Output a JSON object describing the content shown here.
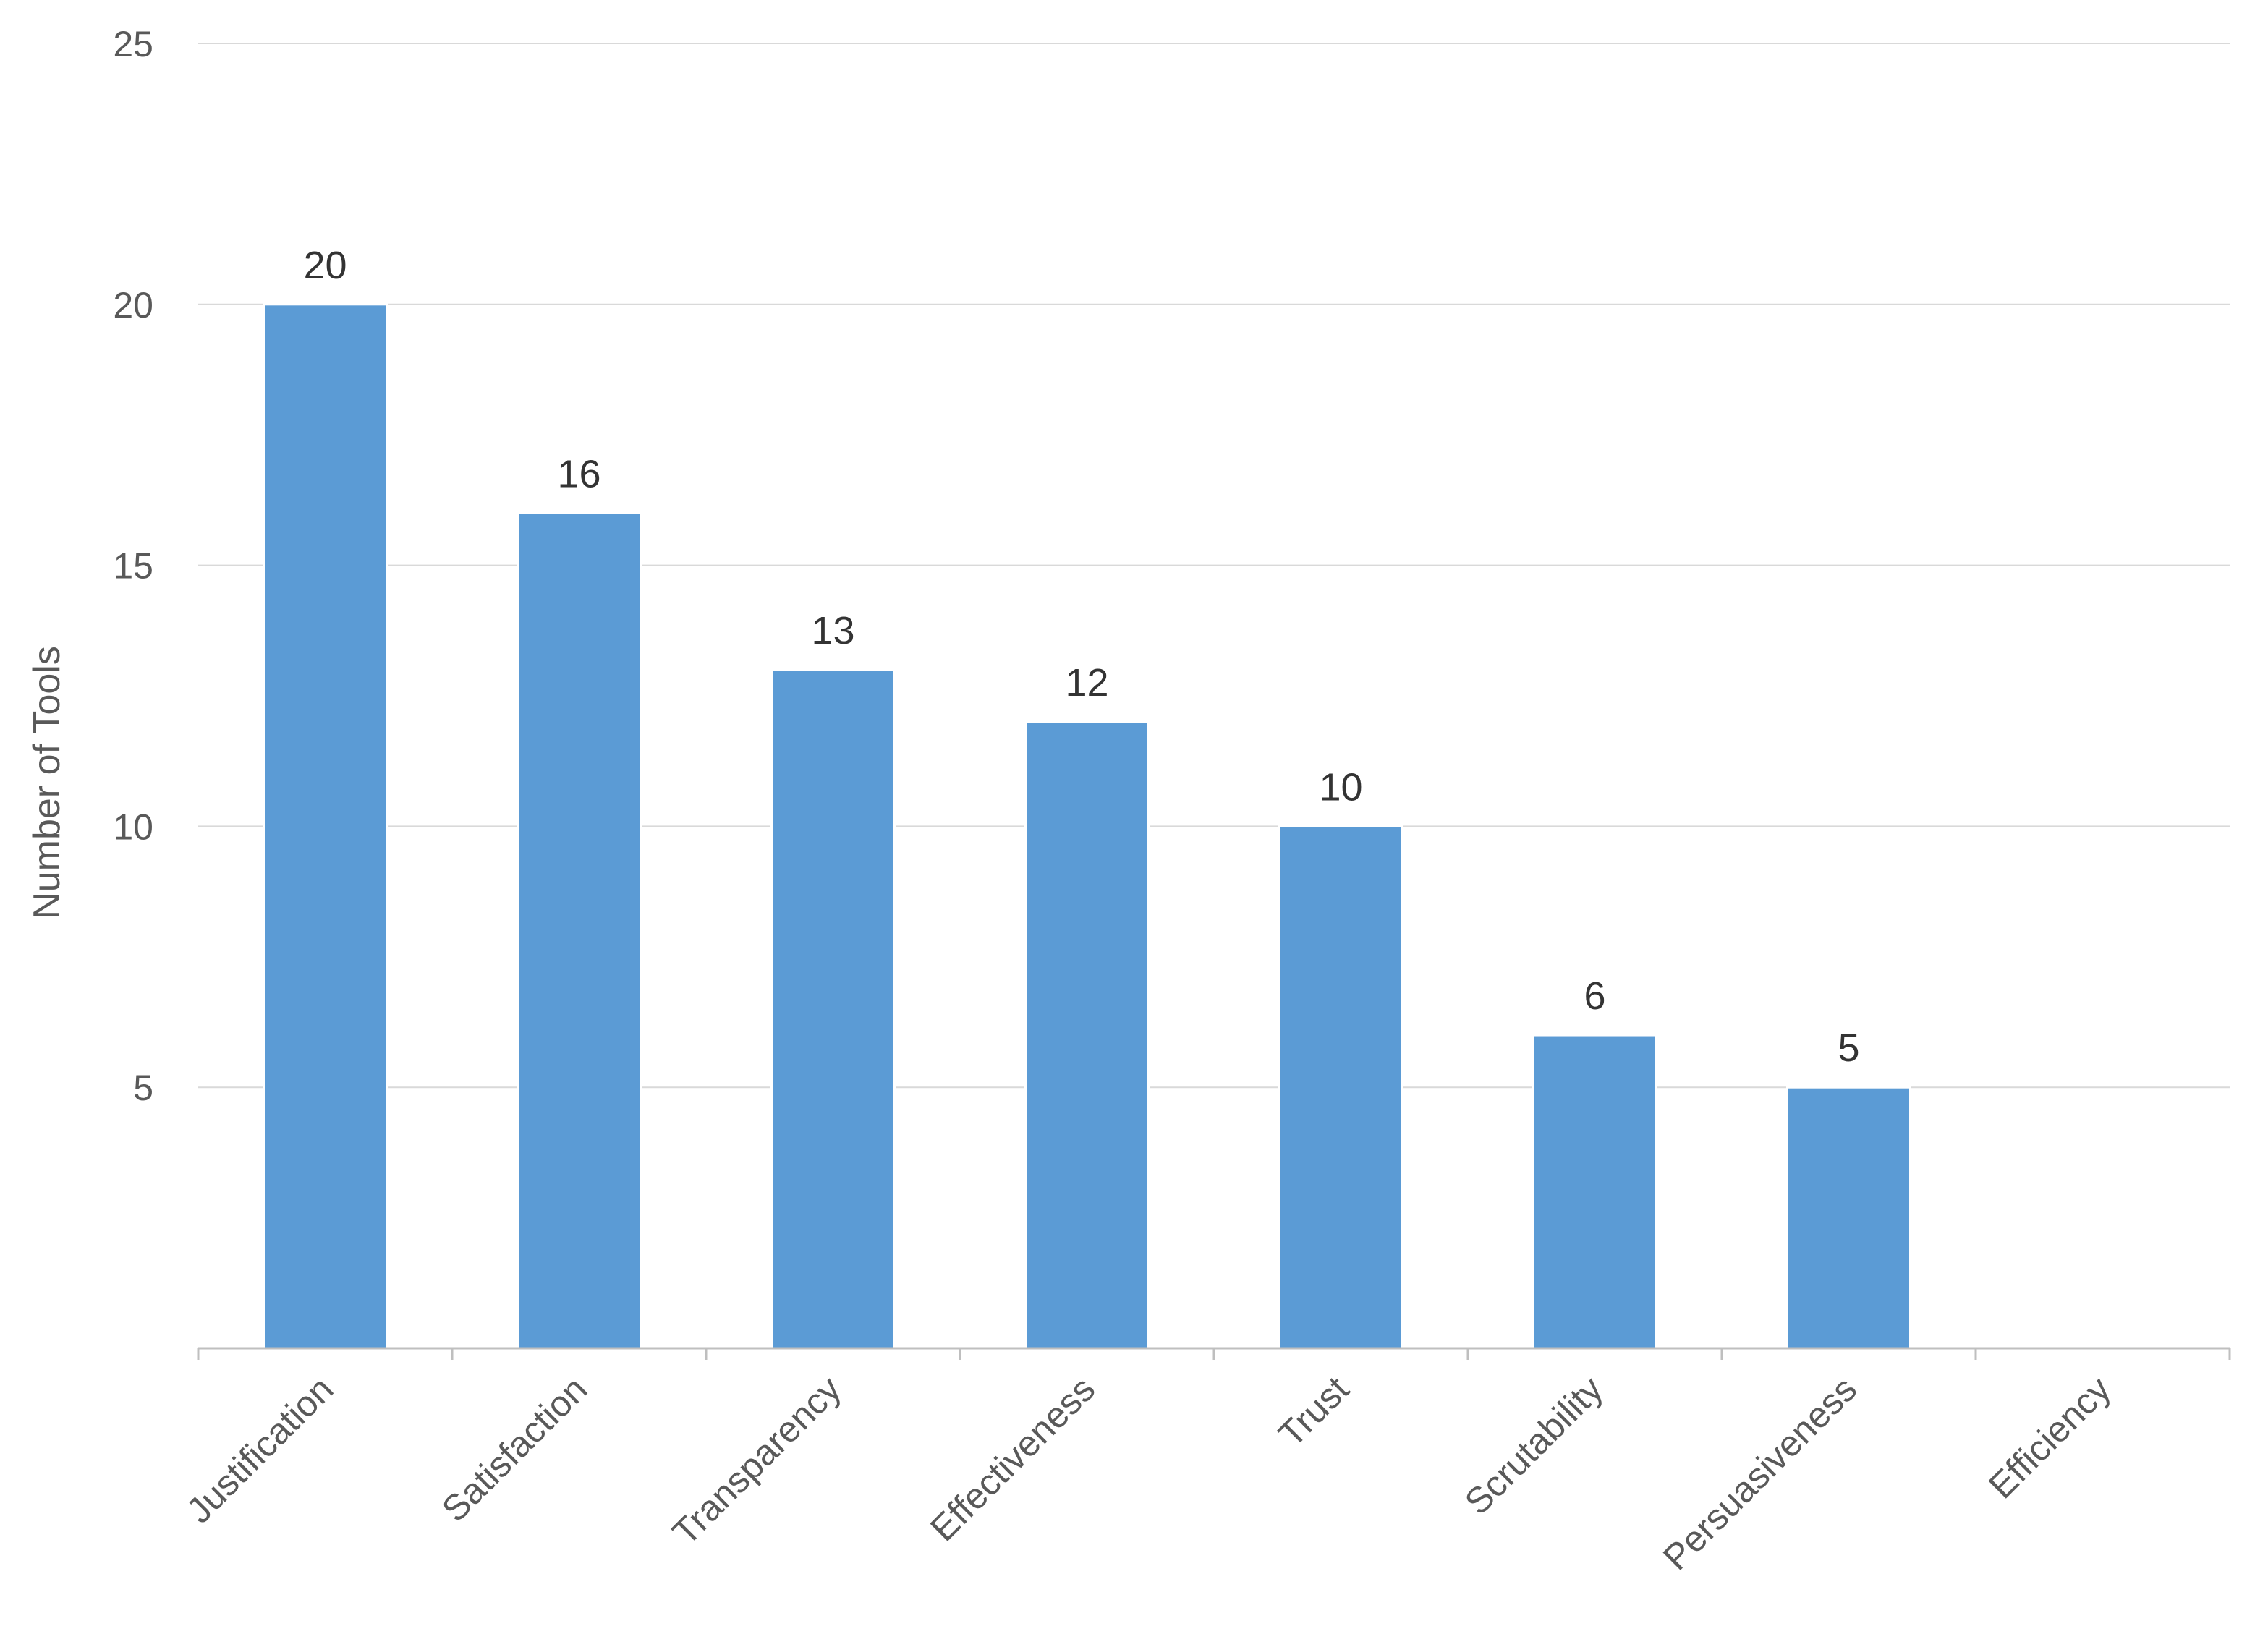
{
  "chart_data": {
    "type": "bar",
    "title": "",
    "xlabel": "",
    "ylabel": "Number of Tools",
    "ylim": [
      0,
      25
    ],
    "yticks": [
      5,
      10,
      15,
      20,
      25
    ],
    "grid": true,
    "legend": "none",
    "bar_color": "#5b9bd5",
    "grid_color": "#d9d9d9",
    "axis_color": "#bfbfbf",
    "categories": [
      "Justification",
      "Satisfaction",
      "Transparency",
      "Effectiveness",
      "Trust",
      "Scrutability",
      "Persuasiveness",
      "Efficiency"
    ],
    "values": [
      20,
      16,
      13,
      12,
      10,
      6,
      5,
      0
    ],
    "data_labels": [
      "20",
      "16",
      "13",
      "12",
      "10",
      "6",
      "5",
      ""
    ]
  }
}
